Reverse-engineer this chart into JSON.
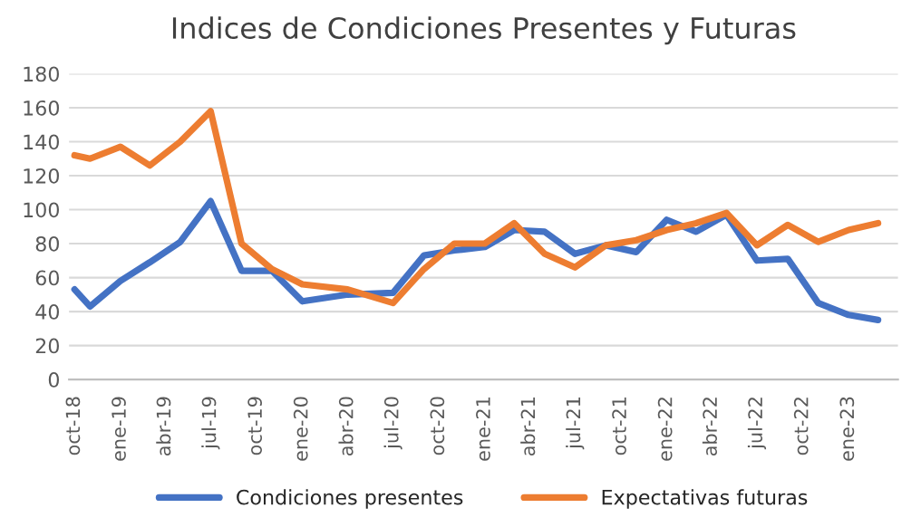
{
  "chart_data": {
    "type": "line",
    "title": "Indices de Condiciones Presentes y Futuras",
    "x": [
      "2018-10",
      "2018-11",
      "2019-01",
      "2019-03",
      "2019-05",
      "2019-07",
      "2019-09",
      "2019-11",
      "2020-01",
      "2020-04",
      "2020-07",
      "2020-09",
      "2020-11",
      "2021-01",
      "2021-03",
      "2021-05",
      "2021-07",
      "2021-09",
      "2021-11",
      "2022-01",
      "2022-03",
      "2022-05",
      "2022-07",
      "2022-09",
      "2022-11",
      "2023-01",
      "2023-03"
    ],
    "series": [
      {
        "name": "Condiciones presentes",
        "color": "#4472c4",
        "values": [
          53,
          43,
          58,
          69,
          81,
          105,
          64,
          64,
          46,
          50,
          51,
          73,
          76,
          78,
          88,
          87,
          74,
          79,
          75,
          94,
          87,
          97,
          70,
          71,
          45,
          38,
          35
        ]
      },
      {
        "name": "Expectativas futuras",
        "color": "#ed7d31",
        "values": [
          132,
          130,
          137,
          126,
          140,
          158,
          80,
          65,
          56,
          53,
          45,
          65,
          80,
          80,
          92,
          74,
          66,
          79,
          82,
          88,
          92,
          98,
          79,
          91,
          81,
          88,
          92
        ]
      }
    ],
    "xlim": [
      "2018-09-20",
      "2023-04-10"
    ],
    "xticks": [
      {
        "value": "2018-10",
        "label": "oct-18"
      },
      {
        "value": "2019-01",
        "label": "ene-19"
      },
      {
        "value": "2019-04",
        "label": "abr-19"
      },
      {
        "value": "2019-07",
        "label": "jul-19"
      },
      {
        "value": "2019-10",
        "label": "oct-19"
      },
      {
        "value": "2020-01",
        "label": "ene-20"
      },
      {
        "value": "2020-04",
        "label": "abr-20"
      },
      {
        "value": "2020-07",
        "label": "jul-20"
      },
      {
        "value": "2020-10",
        "label": "oct-20"
      },
      {
        "value": "2021-01",
        "label": "ene-21"
      },
      {
        "value": "2021-04",
        "label": "abr-21"
      },
      {
        "value": "2021-07",
        "label": "jul-21"
      },
      {
        "value": "2021-10",
        "label": "oct-21"
      },
      {
        "value": "2022-01",
        "label": "ene-22"
      },
      {
        "value": "2022-04",
        "label": "abr-22"
      },
      {
        "value": "2022-07",
        "label": "jul-22"
      },
      {
        "value": "2022-10",
        "label": "oct-22"
      },
      {
        "value": "2023-01",
        "label": "ene-23"
      }
    ],
    "ylim": [
      0,
      180
    ],
    "yticks": [
      0,
      20,
      40,
      60,
      80,
      100,
      120,
      140,
      160,
      180
    ],
    "grid": "y",
    "legend": "bottom",
    "marker": "none",
    "line_style": "solid"
  }
}
